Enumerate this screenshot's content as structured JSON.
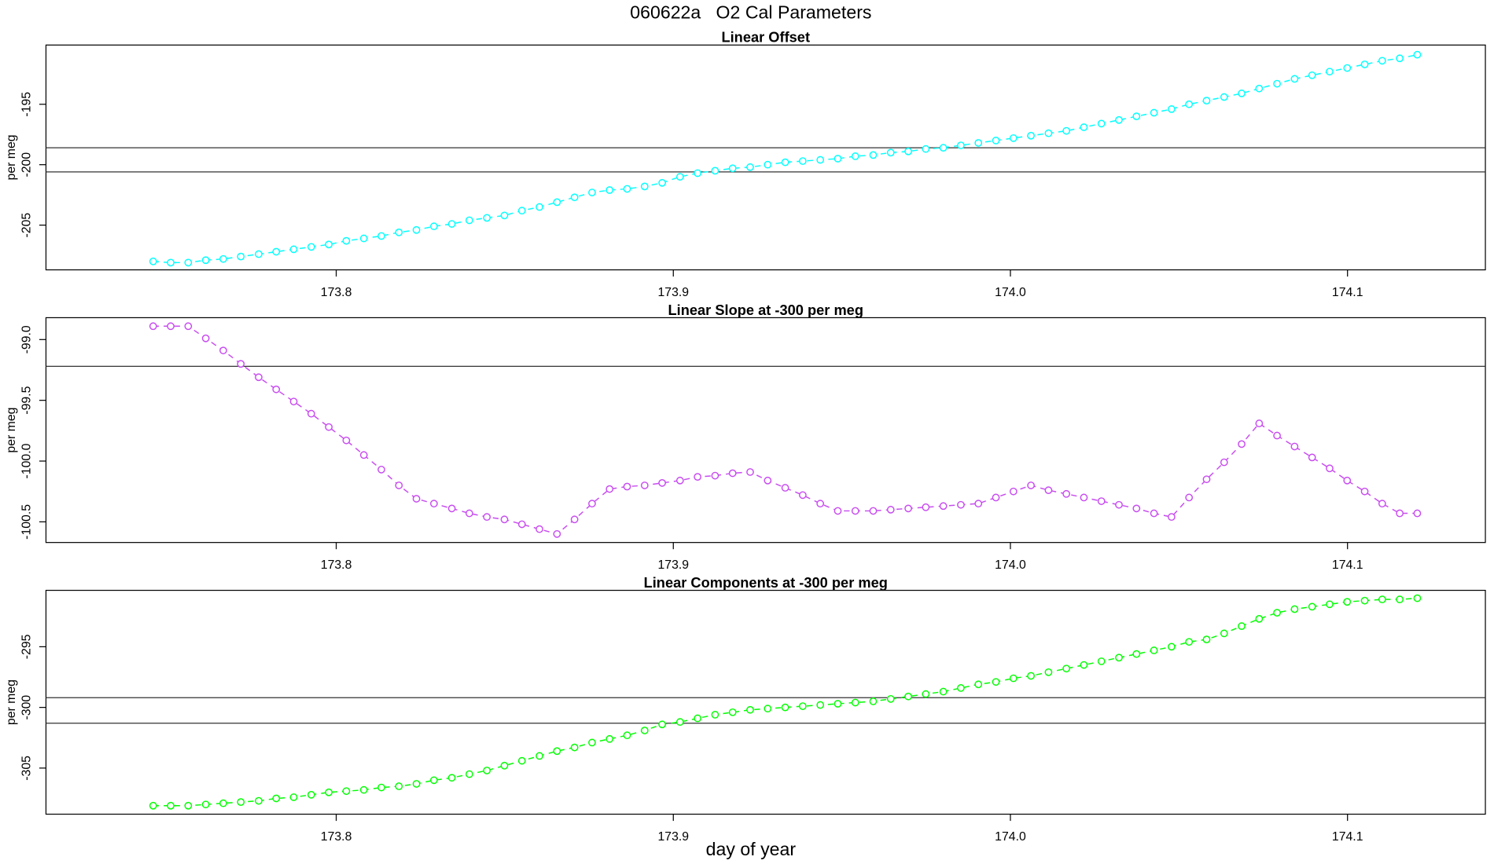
{
  "title": "060622a   O2 Cal Parameters",
  "chart_data": [
    {
      "type": "line",
      "title": "Linear Offset",
      "y_label": "per meg",
      "x": [
        173.7457,
        173.7509,
        173.7561,
        173.7613,
        173.7665,
        173.7717,
        173.777,
        173.7822,
        173.7874,
        173.7926,
        173.7978,
        173.803,
        173.8082,
        173.8134,
        173.8186,
        173.8238,
        173.829,
        173.8343,
        173.8395,
        173.8447,
        173.8499,
        173.8551,
        173.8603,
        173.8655,
        173.8707,
        173.8759,
        173.8811,
        173.8863,
        173.8915,
        173.8967,
        173.902,
        173.9072,
        173.9124,
        173.9176,
        173.9228,
        173.928,
        173.9332,
        173.9384,
        173.9436,
        173.9488,
        173.954,
        173.9593,
        173.9645,
        173.9697,
        173.9749,
        173.9801,
        173.9853,
        173.9905,
        173.9957,
        174.0009,
        174.0061,
        174.0113,
        174.0166,
        174.0218,
        174.027,
        174.0322,
        174.0374,
        174.0426,
        174.0478,
        174.053,
        174.0582,
        174.0634,
        174.0686,
        174.0738,
        174.0791,
        174.0843,
        174.0895,
        174.0947,
        174.0999,
        174.1051,
        174.1103,
        174.1155,
        174.1207
      ],
      "series": [
        {
          "color": "#00ffff",
          "values": [
            -208.0,
            -208.1,
            -208.1,
            -207.9,
            -207.8,
            -207.6,
            -207.4,
            -207.2,
            -207.0,
            -206.8,
            -206.6,
            -206.3,
            -206.1,
            -205.9,
            -205.6,
            -205.4,
            -205.1,
            -204.9,
            -204.6,
            -204.4,
            -204.2,
            -203.8,
            -203.5,
            -203.1,
            -202.7,
            -202.3,
            -202.1,
            -202.0,
            -201.8,
            -201.5,
            -201.0,
            -200.7,
            -200.5,
            -200.3,
            -200.2,
            -200.0,
            -199.8,
            -199.7,
            -199.6,
            -199.5,
            -199.3,
            -199.2,
            -199.0,
            -198.9,
            -198.7,
            -198.6,
            -198.4,
            -198.2,
            -198.0,
            -197.8,
            -197.6,
            -197.4,
            -197.2,
            -196.9,
            -196.6,
            -196.3,
            -196.0,
            -195.7,
            -195.4,
            -195.0,
            -194.7,
            -194.4,
            -194.1,
            -193.7,
            -193.3,
            -192.9,
            -192.6,
            -192.3,
            -192.0,
            -191.7,
            -191.4,
            -191.2,
            -190.9
          ]
        }
      ],
      "hlines": [
        -198.6,
        -200.6
      ],
      "xlim": [
        173.7139,
        174.1409
      ],
      "xticks": [
        173.8,
        173.9,
        {
          "value": 174,
          "label": "174.0"
        },
        174.1
      ],
      "ylim": [
        -208.7,
        -190.1
      ],
      "yticks": [
        -205,
        -200,
        -195
      ]
    },
    {
      "type": "line",
      "title": "Linear Slope at -300 per meg",
      "y_label": "per meg",
      "x": [
        173.7457,
        173.7509,
        173.7561,
        173.7613,
        173.7665,
        173.7717,
        173.777,
        173.7822,
        173.7874,
        173.7926,
        173.7978,
        173.803,
        173.8082,
        173.8134,
        173.8186,
        173.8238,
        173.829,
        173.8343,
        173.8395,
        173.8447,
        173.8499,
        173.8551,
        173.8603,
        173.8655,
        173.8707,
        173.8759,
        173.8811,
        173.8863,
        173.8915,
        173.8967,
        173.902,
        173.9072,
        173.9124,
        173.9176,
        173.9228,
        173.928,
        173.9332,
        173.9384,
        173.9436,
        173.9488,
        173.954,
        173.9593,
        173.9645,
        173.9697,
        173.9749,
        173.9801,
        173.9853,
        173.9905,
        173.9957,
        174.0009,
        174.0061,
        174.0113,
        174.0166,
        174.0218,
        174.027,
        174.0322,
        174.0374,
        174.0426,
        174.0478,
        174.053,
        174.0582,
        174.0634,
        174.0686,
        174.0738,
        174.0791,
        174.0843,
        174.0895,
        174.0947,
        174.0999,
        174.1051,
        174.1103,
        174.1155,
        174.1207
      ],
      "series": [
        {
          "color": "#c84cf0",
          "values": [
            -98.89,
            -98.89,
            -98.89,
            -98.99,
            -99.09,
            -99.2,
            -99.31,
            -99.41,
            -99.51,
            -99.61,
            -99.72,
            -99.83,
            -99.95,
            -100.07,
            -100.2,
            -100.31,
            -100.35,
            -100.39,
            -100.43,
            -100.46,
            -100.48,
            -100.52,
            -100.56,
            -100.6,
            -100.48,
            -100.35,
            -100.23,
            -100.21,
            -100.2,
            -100.18,
            -100.16,
            -100.13,
            -100.12,
            -100.1,
            -100.09,
            -100.16,
            -100.22,
            -100.28,
            -100.35,
            -100.41,
            -100.41,
            -100.41,
            -100.4,
            -100.39,
            -100.38,
            -100.37,
            -100.36,
            -100.35,
            -100.3,
            -100.25,
            -100.2,
            -100.24,
            -100.27,
            -100.3,
            -100.33,
            -100.36,
            -100.39,
            -100.43,
            -100.46,
            -100.3,
            -100.15,
            -100.01,
            -99.86,
            -99.69,
            -99.79,
            -99.88,
            -99.97,
            -100.06,
            -100.16,
            -100.25,
            -100.35,
            -100.43,
            -100.43
          ]
        }
      ],
      "hlines": [
        -99.22
      ],
      "xlim": [
        173.7139,
        174.1409
      ],
      "xticks": [
        173.8,
        173.9,
        {
          "value": 174,
          "label": "174.0"
        },
        174.1
      ],
      "ylim": [
        -100.67,
        -98.82
      ],
      "yticks": [
        {
          "value": -100.5,
          "label": "-100.5"
        },
        {
          "value": -100,
          "label": "-100.0"
        },
        -99.5,
        {
          "value": -99,
          "label": "-99.0"
        }
      ]
    },
    {
      "type": "line",
      "title": "Linear Components at -300 per meg",
      "y_label": "per meg",
      "x_label": "day of year",
      "x": [
        173.7457,
        173.7509,
        173.7561,
        173.7613,
        173.7665,
        173.7717,
        173.777,
        173.7822,
        173.7874,
        173.7926,
        173.7978,
        173.803,
        173.8082,
        173.8134,
        173.8186,
        173.8238,
        173.829,
        173.8343,
        173.8395,
        173.8447,
        173.8499,
        173.8551,
        173.8603,
        173.8655,
        173.8707,
        173.8759,
        173.8811,
        173.8863,
        173.8915,
        173.8967,
        173.902,
        173.9072,
        173.9124,
        173.9176,
        173.9228,
        173.928,
        173.9332,
        173.9384,
        173.9436,
        173.9488,
        173.954,
        173.9593,
        173.9645,
        173.9697,
        173.9749,
        173.9801,
        173.9853,
        173.9905,
        173.9957,
        174.0009,
        174.0061,
        174.0113,
        174.0166,
        174.0218,
        174.027,
        174.0322,
        174.0374,
        174.0426,
        174.0478,
        174.053,
        174.0582,
        174.0634,
        174.0686,
        174.0738,
        174.0791,
        174.0843,
        174.0895,
        174.0947,
        174.0999,
        174.1051,
        174.1103,
        174.1155,
        174.1207
      ],
      "series": [
        {
          "color": "#00ff00",
          "values": [
            -308.1,
            -308.1,
            -308.1,
            -308.0,
            -307.9,
            -307.8,
            -307.7,
            -307.5,
            -307.4,
            -307.2,
            -307.0,
            -306.9,
            -306.8,
            -306.6,
            -306.5,
            -306.3,
            -306.0,
            -305.8,
            -305.5,
            -305.2,
            -304.8,
            -304.4,
            -304.0,
            -303.6,
            -303.3,
            -302.9,
            -302.6,
            -302.3,
            -301.9,
            -301.4,
            -301.2,
            -300.9,
            -300.6,
            -300.4,
            -300.2,
            -300.1,
            -300.0,
            -299.9,
            -299.8,
            -299.7,
            -299.6,
            -299.5,
            -299.3,
            -299.1,
            -298.9,
            -298.7,
            -298.4,
            -298.1,
            -297.9,
            -297.6,
            -297.4,
            -297.1,
            -296.8,
            -296.5,
            -296.2,
            -295.9,
            -295.6,
            -295.3,
            -295.0,
            -294.6,
            -294.4,
            -293.9,
            -293.3,
            -292.7,
            -292.2,
            -291.9,
            -291.7,
            -291.5,
            -291.3,
            -291.2,
            -291.1,
            -291.1,
            -291.0
          ]
        }
      ],
      "hlines": [
        -299.2,
        -301.3
      ],
      "xlim": [
        173.7139,
        174.1409
      ],
      "xticks": [
        173.8,
        173.9,
        {
          "value": 174,
          "label": "174.0"
        },
        174.1
      ],
      "ylim": [
        -308.8,
        -290.35
      ],
      "yticks": [
        -305,
        -300,
        -295
      ]
    }
  ]
}
